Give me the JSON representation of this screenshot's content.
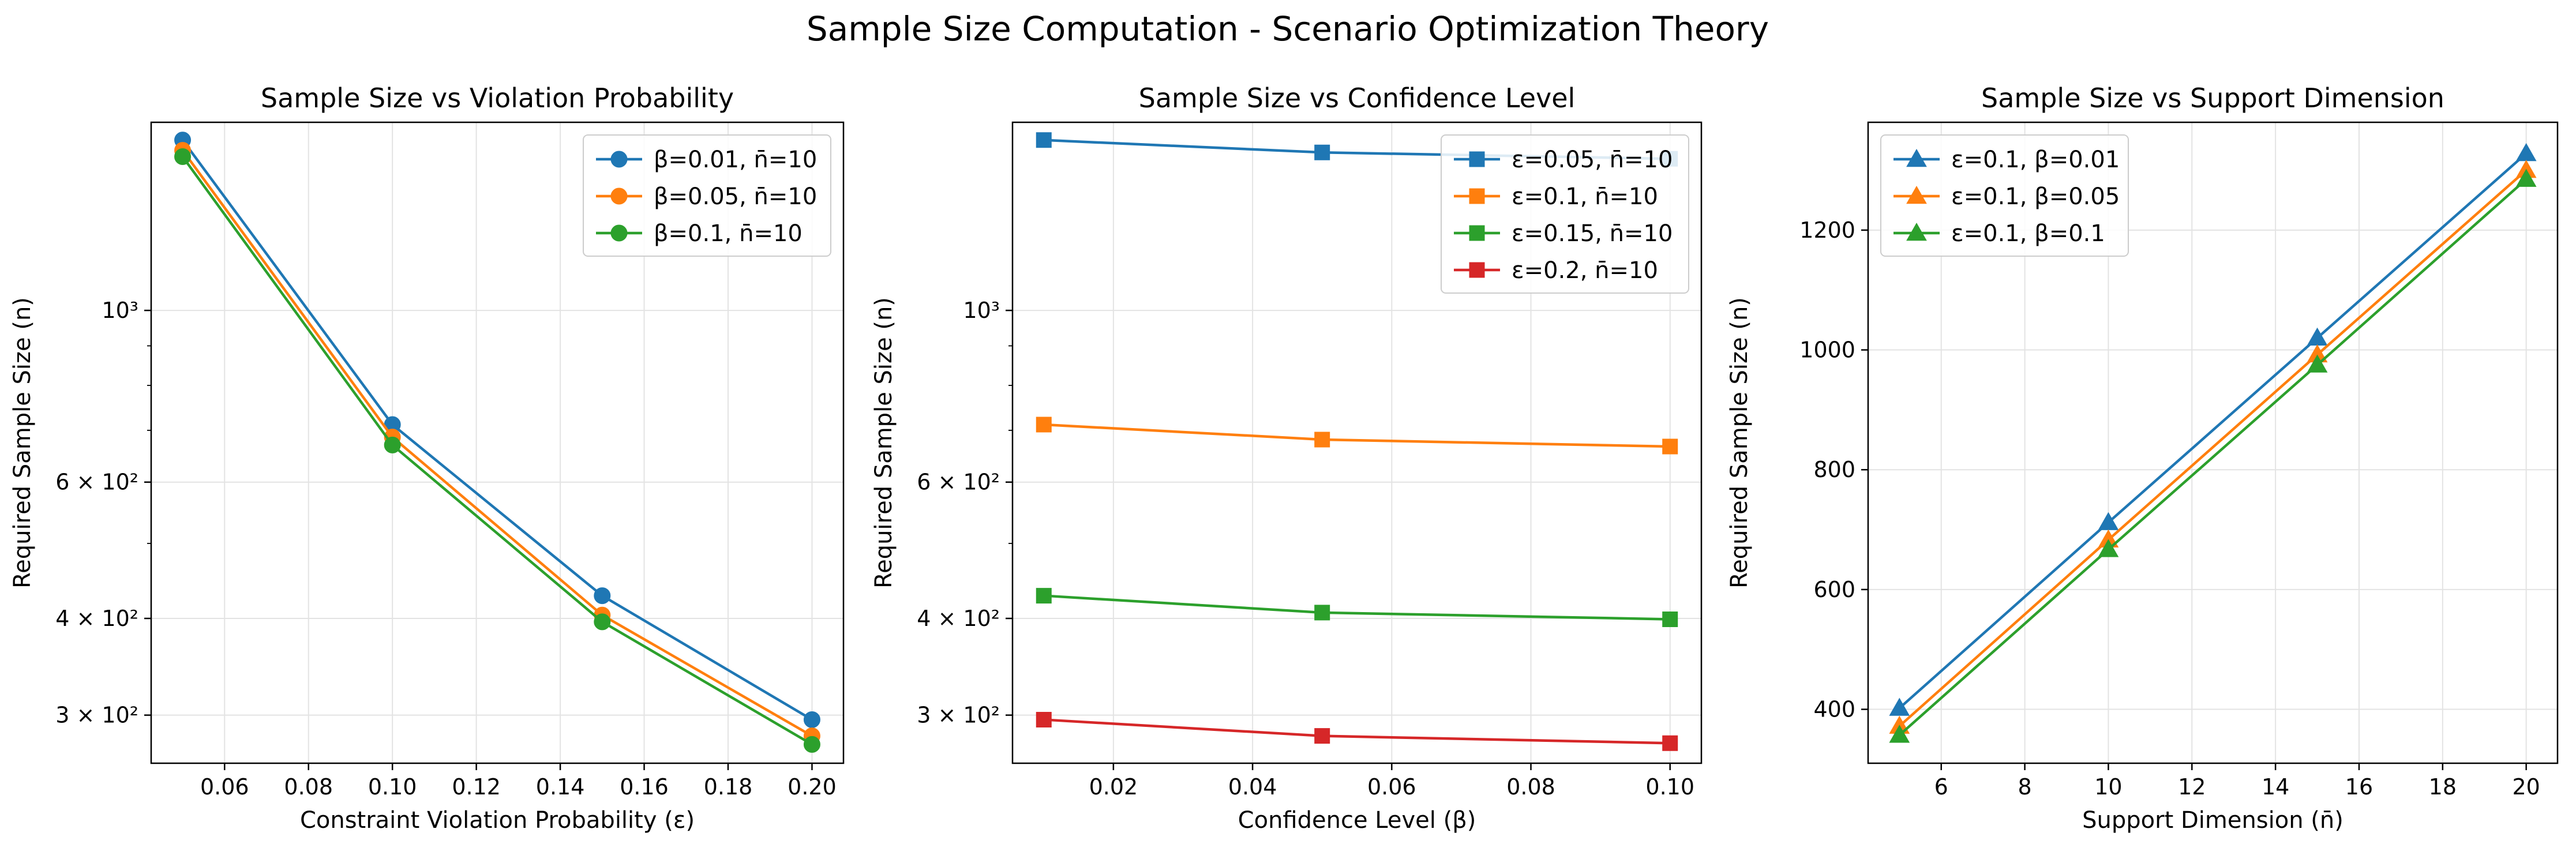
{
  "figure_title": "Sample Size Computation - Scenario Optimization Theory",
  "chart_data": [
    {
      "type": "line",
      "title": "Sample Size vs Violation Probability",
      "xlabel": "Constraint Violation Probability (ε)",
      "ylabel": "Required Sample Size (n)",
      "yscale": "log",
      "xlim": [
        0.0425,
        0.2075
      ],
      "ylim": [
        260,
        1750
      ],
      "xticks": [
        {
          "v": 0.06,
          "label": "0.06"
        },
        {
          "v": 0.08,
          "label": "0.08"
        },
        {
          "v": 0.1,
          "label": "0.10"
        },
        {
          "v": 0.12,
          "label": "0.12"
        },
        {
          "v": 0.14,
          "label": "0.14"
        },
        {
          "v": 0.16,
          "label": "0.16"
        },
        {
          "v": 0.18,
          "label": "0.18"
        },
        {
          "v": 0.2,
          "label": "0.20"
        }
      ],
      "yticks": [
        {
          "v": 300,
          "label": "3 × 10²"
        },
        {
          "v": 400,
          "label": "4 × 10²"
        },
        {
          "v": 600,
          "label": "6 × 10²"
        },
        {
          "v": 1000,
          "label": "10³"
        }
      ],
      "yminor": [
        500,
        700,
        800,
        900
      ],
      "grid": true,
      "legend_position": "top-right",
      "marker": "circle",
      "x": [
        0.05,
        0.1,
        0.15,
        0.2
      ],
      "series": [
        {
          "name": "β=0.01, n̄=10",
          "color": "#1f77b4",
          "values": [
            1660,
            712,
            428,
            296
          ]
        },
        {
          "name": "β=0.05, n̄=10",
          "color": "#ff7f0e",
          "values": [
            1610,
            686,
            404,
            282
          ]
        },
        {
          "name": "β=0.1, n̄=10",
          "color": "#2ca02c",
          "values": [
            1580,
            670,
            396,
            275
          ]
        }
      ]
    },
    {
      "type": "line",
      "title": "Sample Size vs Confidence Level",
      "xlabel": "Confidence Level (β)",
      "ylabel": "Required Sample Size (n)",
      "yscale": "log",
      "xlim": [
        0.0055,
        0.1045
      ],
      "ylim": [
        260,
        1750
      ],
      "xticks": [
        {
          "v": 0.02,
          "label": "0.02"
        },
        {
          "v": 0.04,
          "label": "0.04"
        },
        {
          "v": 0.06,
          "label": "0.06"
        },
        {
          "v": 0.08,
          "label": "0.08"
        },
        {
          "v": 0.1,
          "label": "0.10"
        }
      ],
      "yticks": [
        {
          "v": 300,
          "label": "3 × 10²"
        },
        {
          "v": 400,
          "label": "4 × 10²"
        },
        {
          "v": 600,
          "label": "6 × 10²"
        },
        {
          "v": 1000,
          "label": "10³"
        }
      ],
      "yminor": [
        500,
        700,
        800,
        900
      ],
      "grid": true,
      "legend_position": "top-right",
      "marker": "square",
      "x": [
        0.01,
        0.05,
        0.1
      ],
      "series": [
        {
          "name": "ε=0.05, n̄=10",
          "color": "#1f77b4",
          "values": [
            1660,
            1600,
            1570
          ]
        },
        {
          "name": "ε=0.1, n̄=10",
          "color": "#ff7f0e",
          "values": [
            712,
            681,
            667
          ]
        },
        {
          "name": "ε=0.15, n̄=10",
          "color": "#2ca02c",
          "values": [
            428,
            407,
            399
          ]
        },
        {
          "name": "ε=0.2, n̄=10",
          "color": "#d62728",
          "values": [
            296,
            282,
            276
          ]
        }
      ]
    },
    {
      "type": "line",
      "title": "Sample Size vs Support Dimension",
      "xlabel": "Support Dimension (n̄)",
      "ylabel": "Required Sample Size (n)",
      "yscale": "linear",
      "xlim": [
        4.25,
        20.75
      ],
      "ylim": [
        310,
        1380
      ],
      "xticks": [
        {
          "v": 6,
          "label": "6"
        },
        {
          "v": 8,
          "label": "8"
        },
        {
          "v": 10,
          "label": "10"
        },
        {
          "v": 12,
          "label": "12"
        },
        {
          "v": 14,
          "label": "14"
        },
        {
          "v": 16,
          "label": "16"
        },
        {
          "v": 18,
          "label": "18"
        },
        {
          "v": 20,
          "label": "20"
        }
      ],
      "yticks": [
        {
          "v": 400,
          "label": "400"
        },
        {
          "v": 600,
          "label": "600"
        },
        {
          "v": 800,
          "label": "800"
        },
        {
          "v": 1000,
          "label": "1000"
        },
        {
          "v": 1200,
          "label": "1200"
        }
      ],
      "yminor": [],
      "grid": true,
      "legend_position": "top-left",
      "marker": "triangle",
      "x": [
        5,
        10,
        15,
        20
      ],
      "series": [
        {
          "name": "ε=0.1, β=0.01",
          "color": "#1f77b4",
          "values": [
            402,
            712,
            1020,
            1328
          ]
        },
        {
          "name": "ε=0.1, β=0.05",
          "color": "#ff7f0e",
          "values": [
            372,
            683,
            992,
            1300
          ]
        },
        {
          "name": "ε=0.1, β=0.1",
          "color": "#2ca02c",
          "values": [
            357,
            667,
            975,
            1285
          ]
        }
      ]
    }
  ]
}
